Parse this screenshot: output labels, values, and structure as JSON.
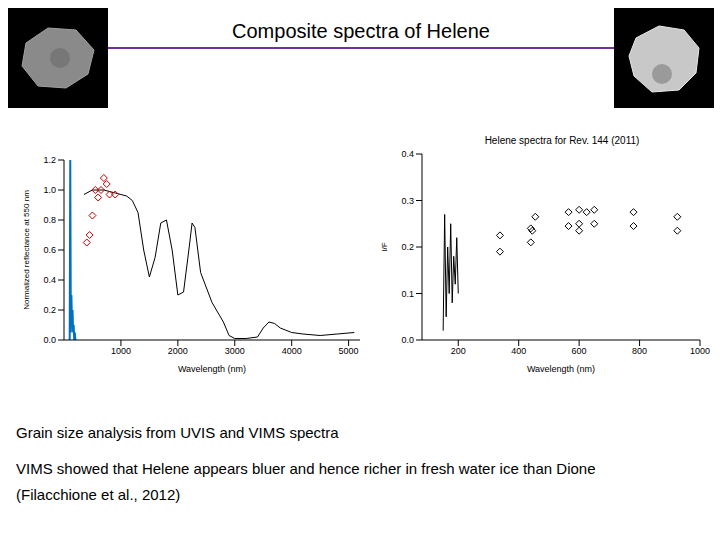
{
  "title": "Composite spectra of Helene",
  "text": [
    "Grain size analysis from UVIS and VIMS spectra",
    "VIMS showed that Helene appears bluer and hence richer in fresh water ice than Dione",
    "(Filacchione et al., 2012)"
  ],
  "chart_data": [
    {
      "type": "line",
      "xlabel": "Wavelength (nm)",
      "ylabel": "Normalized reflectance at 550 nm",
      "xlim": [
        0,
        5200
      ],
      "xticks": [
        1000,
        2000,
        3000,
        4000,
        5000
      ],
      "ylim": [
        0,
        1.2
      ],
      "yticks": [
        {
          "value": 0,
          "label": "0.0"
        },
        0.2,
        0.4,
        0.6,
        0.8,
        {
          "value": 1,
          "label": "1.0"
        },
        1.2
      ],
      "grid": false,
      "series": [
        {
          "type": "line",
          "color": "#0070c0",
          "x": [
            100,
            110,
            120,
            130,
            140,
            150,
            160,
            170,
            180,
            190,
            200
          ],
          "values": [
            0,
            1.2,
            0.05,
            0.3,
            0.1,
            0.2,
            0.05,
            0.1,
            0,
            0.05,
            0
          ]
        },
        {
          "type": "line",
          "color": "#000000",
          "x": [
            350,
            500,
            700,
            900,
            1000,
            1100,
            1200,
            1300,
            1400,
            1500,
            1600,
            1700,
            1800,
            1900,
            2000,
            2100,
            2200,
            2250,
            2300,
            2400,
            2600,
            2800,
            2900,
            3000,
            3200,
            3400,
            3500,
            3600,
            3700,
            3800,
            4000,
            4200,
            4500,
            4800,
            5100
          ],
          "values": [
            0.97,
            1.0,
            1.0,
            0.98,
            0.97,
            0.96,
            0.93,
            0.85,
            0.6,
            0.42,
            0.55,
            0.78,
            0.8,
            0.6,
            0.3,
            0.32,
            0.62,
            0.78,
            0.75,
            0.45,
            0.25,
            0.12,
            0.03,
            0.01,
            0.01,
            0.02,
            0.08,
            0.12,
            0.11,
            0.08,
            0.05,
            0.04,
            0.03,
            0.04,
            0.05
          ]
        },
        {
          "type": "scatter",
          "color": "#c00000",
          "marker": "diamond",
          "x": [
            400,
            450,
            500,
            550,
            600,
            650,
            700,
            750,
            800,
            900
          ],
          "values": [
            0.65,
            0.7,
            0.83,
            1.0,
            0.95,
            1.0,
            1.08,
            1.04,
            0.97,
            0.97
          ]
        }
      ]
    },
    {
      "type": "scatter",
      "title": "Helene spectra for Rev. 144 (2011)",
      "xlabel": "Wavelength (nm)",
      "ylabel": "I/F",
      "xlim": [
        80,
        1000
      ],
      "xticks": [
        200,
        400,
        600,
        800,
        1000
      ],
      "ylim": [
        0,
        0.4
      ],
      "yticks": [
        {
          "value": 0,
          "label": "0.0"
        },
        0.1,
        0.2,
        0.3,
        0.4
      ],
      "grid": false,
      "series": [
        {
          "type": "line",
          "color": "#000000",
          "x": [
            150,
            155,
            160,
            165,
            170,
            175,
            180,
            185,
            190,
            195,
            200
          ],
          "values": [
            0.02,
            0.27,
            0.05,
            0.2,
            0.1,
            0.25,
            0.08,
            0.18,
            0.12,
            0.22,
            0.1
          ]
        },
        {
          "type": "scatter",
          "color": "#000000",
          "marker": "diamond",
          "x": [
            338,
            338,
            440,
            440,
            445,
            455,
            565,
            565,
            600,
            600,
            600,
            625,
            650,
            650,
            780,
            780,
            925,
            925
          ],
          "values": [
            0.225,
            0.19,
            0.24,
            0.21,
            0.235,
            0.265,
            0.275,
            0.245,
            0.28,
            0.25,
            0.235,
            0.275,
            0.28,
            0.25,
            0.275,
            0.245,
            0.265,
            0.235
          ]
        }
      ]
    }
  ]
}
